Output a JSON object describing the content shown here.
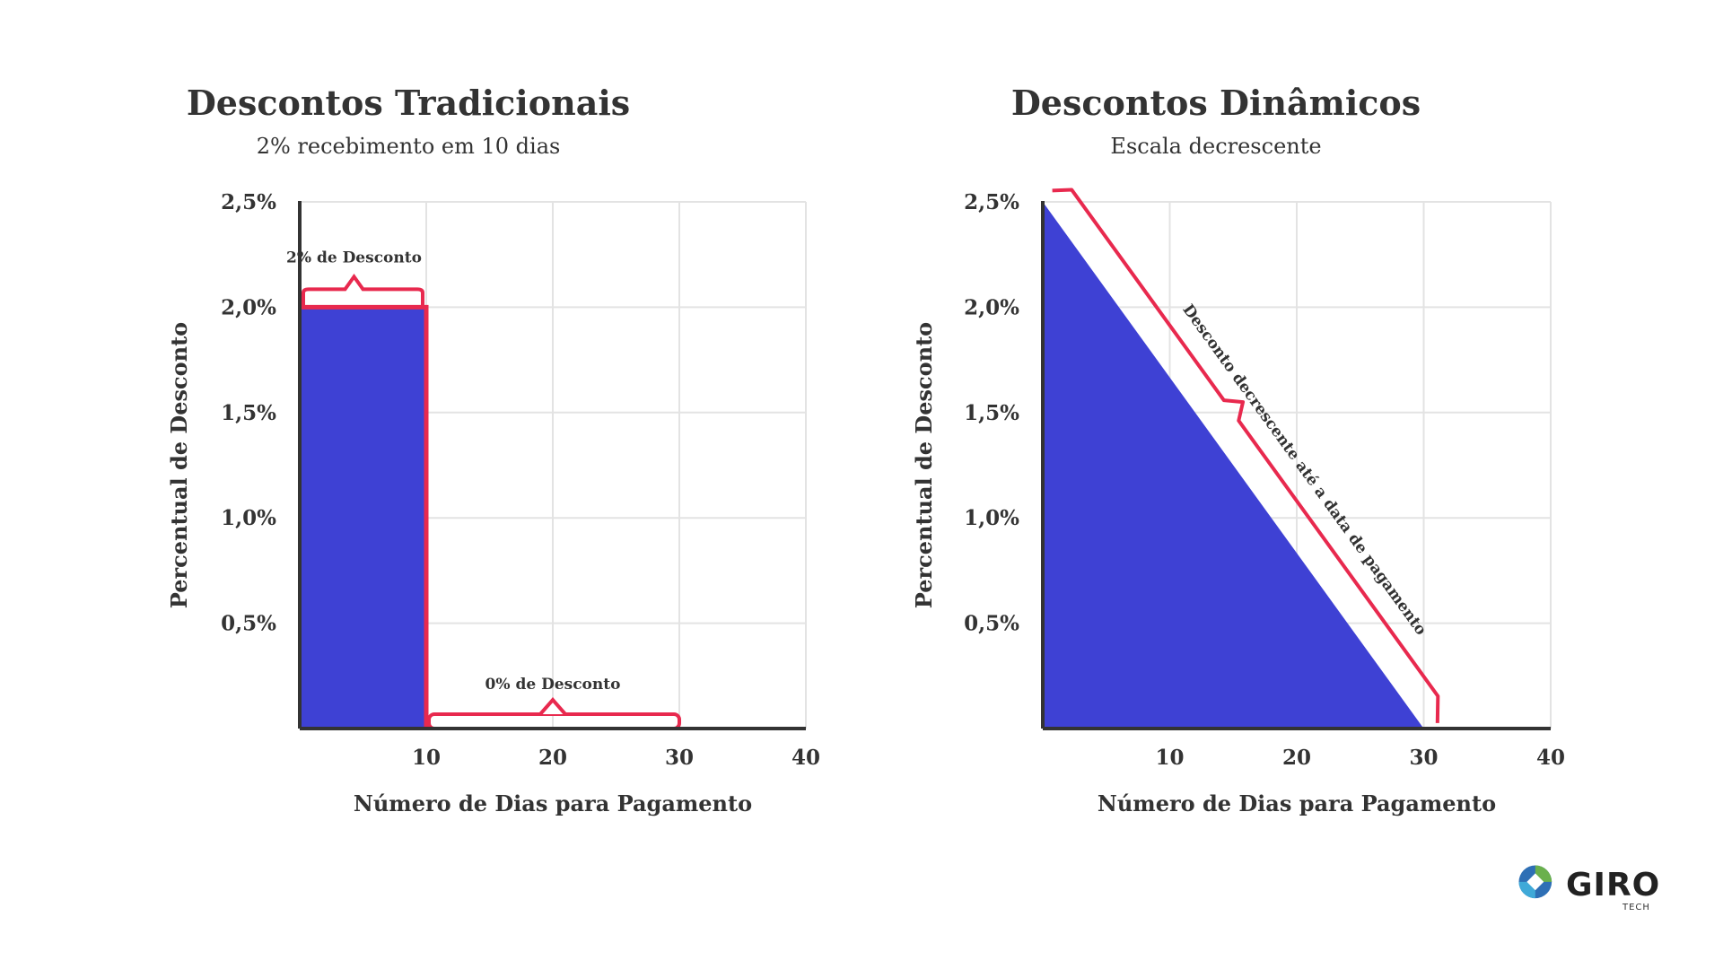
{
  "chart_data": [
    {
      "type": "bar",
      "title": "Descontos Tradicionais",
      "subtitle": "2% recebimento em 10 dias",
      "xlabel": "Número de Dias para Pagamento",
      "ylabel": "Percentual de Desconto",
      "x_ticks": [
        "10",
        "20",
        "30",
        "40"
      ],
      "y_ticks": [
        "0,5%",
        "1,0%",
        "1,5%",
        "2,0%",
        "2,5%"
      ],
      "xlim": [
        0,
        40
      ],
      "ylim": [
        0,
        2.5
      ],
      "grid": true,
      "series": [
        {
          "segments": [
            {
              "x_start": 0,
              "x_end": 10,
              "value": 2.0
            },
            {
              "x_start": 10,
              "x_end": 30,
              "value": 0
            }
          ]
        }
      ],
      "annotations": [
        {
          "text": "2% de Desconto",
          "x_start": 0,
          "x_end": 10,
          "y": 2.0
        },
        {
          "text": "0% de Desconto",
          "x_start": 10,
          "x_end": 30,
          "y": 0
        }
      ]
    },
    {
      "type": "area",
      "title": "Descontos Dinâmicos",
      "subtitle": "Escala decrescente",
      "xlabel": "Número de Dias para Pagamento",
      "ylabel": "Percentual de Desconto",
      "x_ticks": [
        "10",
        "20",
        "30",
        "40"
      ],
      "y_ticks": [
        "0,5%",
        "1,0%",
        "1,5%",
        "2,0%",
        "2,5%"
      ],
      "xlim": [
        0,
        40
      ],
      "ylim": [
        0,
        2.5
      ],
      "grid": true,
      "series": [
        {
          "x": [
            0,
            30
          ],
          "y": [
            2.5,
            0
          ]
        }
      ],
      "annotations": [
        {
          "text": "Desconto decrescente até a data de pagamento",
          "x_start": 0,
          "x_end": 30
        }
      ]
    }
  ],
  "colors": {
    "fill": "#3e41d4",
    "bracket": "#e8294e",
    "grid": "#e3e3e3",
    "axis": "#333333",
    "text": "#333333"
  },
  "logo": {
    "name": "GIRO",
    "sub": "TECH"
  }
}
